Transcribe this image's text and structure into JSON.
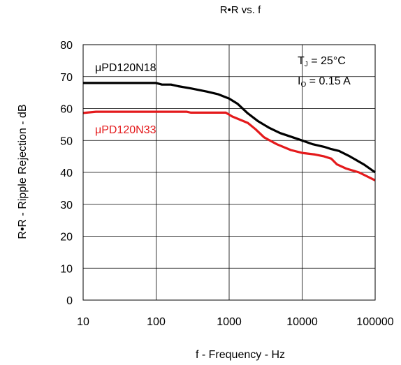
{
  "chart_data": {
    "type": "line",
    "title": "R•R vs. f",
    "xlabel": "f - Frequency - Hz",
    "ylabel": "R•R - Ripple Rejection - dB",
    "x_scale": "log",
    "xlim": [
      10,
      100000
    ],
    "ylim": [
      0,
      80
    ],
    "x_ticks": [
      "10",
      "100",
      "1000",
      "10000",
      "100000"
    ],
    "y_ticks": [
      "0",
      "10",
      "20",
      "30",
      "40",
      "50",
      "60",
      "70",
      "80"
    ],
    "grid": true,
    "annotations": [
      {
        "prefix": "T",
        "sub": "J",
        "rest": " = 25°C"
      },
      {
        "prefix": "I",
        "sub": "O",
        "rest": " = 0.15 A"
      }
    ],
    "series": [
      {
        "name": "μPD120N18",
        "color": "#000000",
        "points": [
          [
            10,
            68
          ],
          [
            100,
            68
          ],
          [
            120,
            67.5
          ],
          [
            160,
            67.5
          ],
          [
            200,
            67
          ],
          [
            300,
            66.3
          ],
          [
            500,
            65.3
          ],
          [
            700,
            64.5
          ],
          [
            1000,
            63.1
          ],
          [
            1300,
            61.5
          ],
          [
            1800,
            58.5
          ],
          [
            2500,
            56
          ],
          [
            3500,
            54
          ],
          [
            5000,
            52.3
          ],
          [
            7000,
            51.2
          ],
          [
            10000,
            50
          ],
          [
            14000,
            48.8
          ],
          [
            20000,
            48
          ],
          [
            25000,
            47.3
          ],
          [
            32000,
            46.7
          ],
          [
            45000,
            45
          ],
          [
            70000,
            42.5
          ],
          [
            100000,
            40
          ]
        ]
      },
      {
        "name": "μPD120N33",
        "color": "#e41a1c",
        "points": [
          [
            10,
            58.6
          ],
          [
            15,
            59
          ],
          [
            100,
            59
          ],
          [
            260,
            59
          ],
          [
            300,
            58.7
          ],
          [
            900,
            58.7
          ],
          [
            1100,
            57.5
          ],
          [
            1800,
            55.5
          ],
          [
            2300,
            53.5
          ],
          [
            3000,
            51
          ],
          [
            4500,
            48.8
          ],
          [
            7000,
            47
          ],
          [
            10000,
            46.1
          ],
          [
            15000,
            45.6
          ],
          [
            20000,
            45
          ],
          [
            25000,
            44.3
          ],
          [
            30000,
            42.5
          ],
          [
            40000,
            41.2
          ],
          [
            60000,
            40
          ],
          [
            100000,
            37.5
          ]
        ]
      }
    ]
  }
}
